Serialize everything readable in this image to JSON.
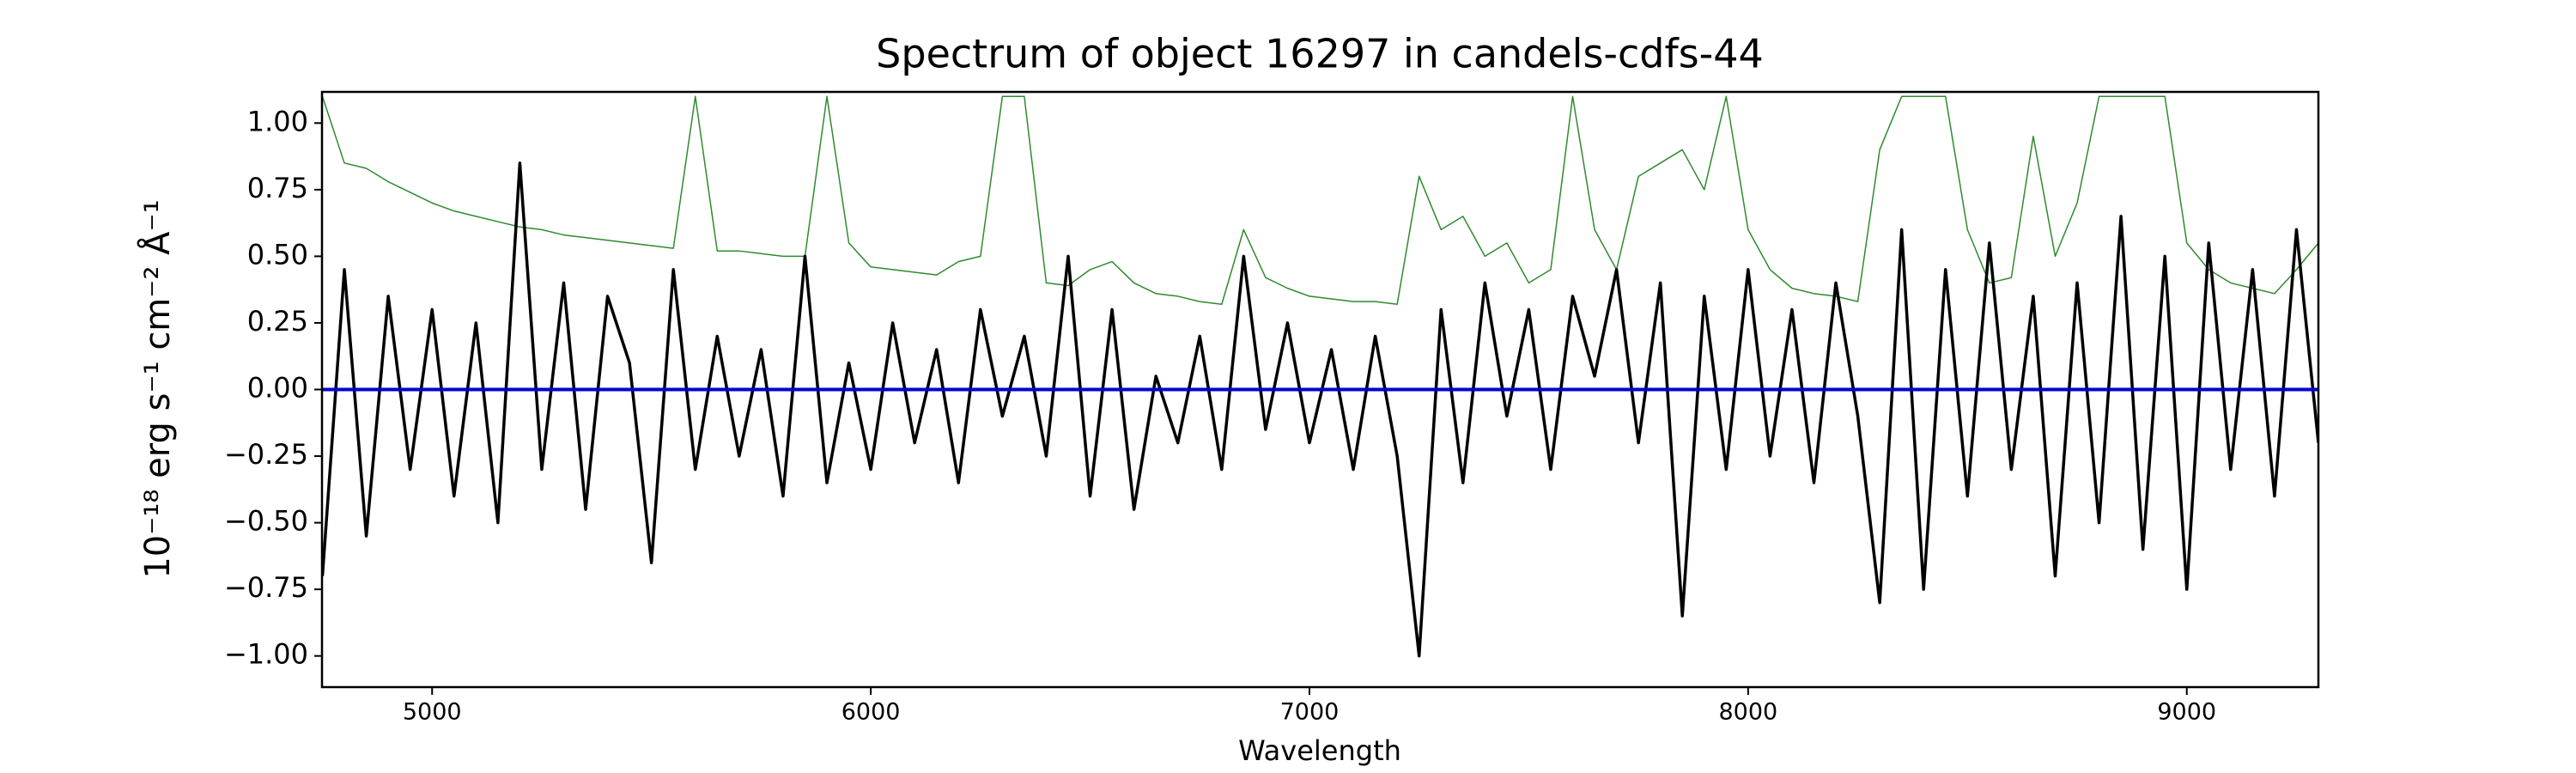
{
  "chart_data": {
    "type": "line",
    "title": "Spectrum of object 16297 in candels-cdfs-44",
    "xlabel": "Wavelength",
    "ylabel": "10⁻¹⁸ erg s⁻¹ cm⁻² Å⁻¹",
    "x": [
      4750,
      4800,
      4850,
      4900,
      4950,
      5000,
      5050,
      5100,
      5150,
      5200,
      5250,
      5300,
      5350,
      5400,
      5450,
      5500,
      5550,
      5600,
      5650,
      5700,
      5750,
      5800,
      5850,
      5900,
      5950,
      6000,
      6050,
      6100,
      6150,
      6200,
      6250,
      6300,
      6350,
      6400,
      6450,
      6500,
      6550,
      6600,
      6650,
      6700,
      6750,
      6800,
      6850,
      6900,
      6950,
      7000,
      7050,
      7100,
      7150,
      7200,
      7250,
      7300,
      7350,
      7400,
      7450,
      7500,
      7550,
      7600,
      7650,
      7700,
      7750,
      7800,
      7850,
      7900,
      7950,
      8000,
      8050,
      8100,
      8150,
      8200,
      8250,
      8300,
      8350,
      8400,
      8450,
      8500,
      8550,
      8600,
      8650,
      8700,
      8750,
      8800,
      8850,
      8900,
      8950,
      9000,
      9050,
      9100,
      9150,
      9200,
      9250,
      9300
    ],
    "series": [
      {
        "color": "#2e8b2e",
        "width": 1.5,
        "values": [
          1.1,
          0.85,
          0.83,
          0.78,
          0.74,
          0.7,
          0.67,
          0.65,
          0.63,
          0.61,
          0.6,
          0.58,
          0.57,
          0.56,
          0.55,
          0.54,
          0.53,
          1.1,
          0.52,
          0.52,
          0.51,
          0.5,
          0.5,
          1.1,
          0.55,
          0.46,
          0.45,
          0.44,
          0.43,
          0.48,
          0.5,
          1.1,
          1.1,
          0.4,
          0.39,
          0.45,
          0.48,
          0.4,
          0.36,
          0.35,
          0.33,
          0.32,
          0.6,
          0.42,
          0.38,
          0.35,
          0.34,
          0.33,
          0.33,
          0.32,
          0.8,
          0.6,
          0.65,
          0.5,
          0.55,
          0.4,
          0.45,
          1.1,
          0.6,
          0.45,
          0.8,
          0.85,
          0.9,
          0.75,
          1.1,
          0.6,
          0.45,
          0.38,
          0.36,
          0.35,
          0.33,
          0.9,
          1.1,
          1.1,
          1.1,
          0.6,
          0.4,
          0.42,
          0.95,
          0.5,
          0.7,
          1.1,
          1.1,
          1.1,
          1.1,
          0.55,
          0.45,
          0.4,
          0.38,
          0.36,
          0.45,
          0.55
        ]
      },
      {
        "color": "#000000",
        "width": 3.5,
        "values": [
          -0.7,
          0.45,
          -0.55,
          0.35,
          -0.3,
          0.3,
          -0.4,
          0.25,
          -0.5,
          0.85,
          -0.3,
          0.4,
          -0.45,
          0.35,
          0.1,
          -0.65,
          0.45,
          -0.3,
          0.2,
          -0.25,
          0.15,
          -0.4,
          0.5,
          -0.35,
          0.1,
          -0.3,
          0.25,
          -0.2,
          0.15,
          -0.35,
          0.3,
          -0.1,
          0.2,
          -0.25,
          0.5,
          -0.4,
          0.3,
          -0.45,
          0.05,
          -0.2,
          0.2,
          -0.3,
          0.5,
          -0.15,
          0.25,
          -0.2,
          0.15,
          -0.3,
          0.2,
          -0.25,
          -1.0,
          0.3,
          -0.35,
          0.4,
          -0.1,
          0.3,
          -0.3,
          0.35,
          0.05,
          0.45,
          -0.2,
          0.4,
          -0.85,
          0.35,
          -0.3,
          0.45,
          -0.25,
          0.3,
          -0.35,
          0.4,
          -0.1,
          -0.8,
          0.6,
          -0.75,
          0.45,
          -0.4,
          0.55,
          -0.3,
          0.35,
          -0.7,
          0.4,
          -0.5,
          0.65,
          -0.6,
          0.5,
          -0.75,
          0.55,
          -0.3,
          0.45,
          -0.4,
          0.6,
          -0.2
        ]
      }
    ],
    "hline": {
      "y": 0,
      "color": "#0000cc"
    },
    "xlim": [
      4749,
      9300
    ],
    "ylim": [
      -1.117,
      1.117
    ],
    "xticks": [
      5000,
      6000,
      7000,
      8000,
      9000
    ],
    "yticks": [
      {
        "value": 1,
        "label": "1.00"
      },
      {
        "value": 0.75,
        "label": "0.75"
      },
      {
        "value": 0.5,
        "label": "0.50"
      },
      {
        "value": 0.25,
        "label": "0.25"
      },
      {
        "value": 0,
        "label": "0.00"
      },
      {
        "value": -0.25,
        "label": "−0.25"
      },
      {
        "value": -0.5,
        "label": "−0.50"
      },
      {
        "value": -0.75,
        "label": "−0.75"
      },
      {
        "value": -1,
        "label": "−1.00"
      }
    ]
  }
}
